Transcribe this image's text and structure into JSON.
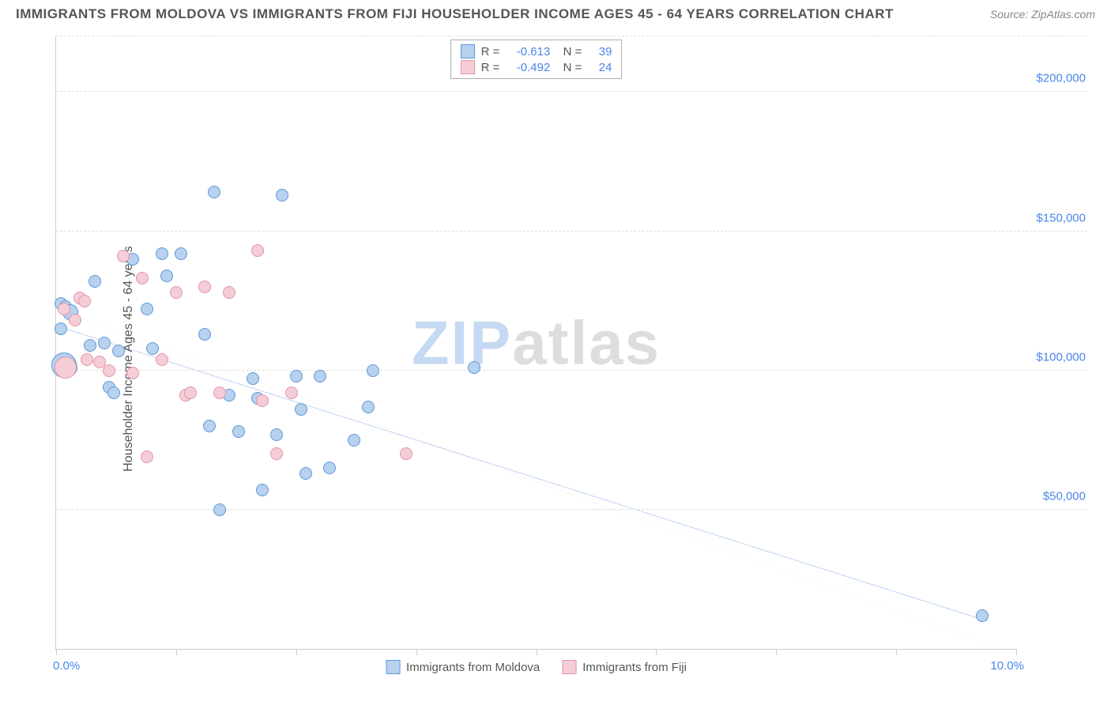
{
  "title": "IMMIGRANTS FROM MOLDOVA VS IMMIGRANTS FROM FIJI HOUSEHOLDER INCOME AGES 45 - 64 YEARS CORRELATION CHART",
  "source": "Source: ZipAtlas.com",
  "ylabel": "Householder Income Ages 45 - 64 years",
  "chart": {
    "type": "scatter",
    "xlim": [
      0,
      10
    ],
    "ylim": [
      0,
      220000
    ],
    "xlim_labels": [
      "0.0%",
      "10.0%"
    ],
    "ytick_step": 50000,
    "ytick_labels": [
      "$50,000",
      "$100,000",
      "$150,000",
      "$200,000"
    ],
    "xtick_positions_pct": [
      0,
      12.5,
      25,
      37.5,
      50,
      62.5,
      75,
      87.5,
      100
    ],
    "grid_color": "#dddddd",
    "axis_color": "#cccccc",
    "background_color": "#ffffff",
    "series": [
      {
        "name": "Immigrants from Moldova",
        "fill": "#b7d1ef",
        "stroke": "#5f98d8",
        "trend_stroke": "#2a6fdb",
        "trend_width": 2.5,
        "trend_dash": "none",
        "stats": {
          "R": "-0.613",
          "N": "39"
        },
        "trend": {
          "x1": 0,
          "y1": 116000,
          "x2": 9.7,
          "y2": 10000
        },
        "points": [
          {
            "x": 0.05,
            "y": 124000,
            "r": 8
          },
          {
            "x": 0.1,
            "y": 123000,
            "r": 8
          },
          {
            "x": 0.15,
            "y": 121000,
            "r": 10
          },
          {
            "x": 0.05,
            "y": 115000,
            "r": 8
          },
          {
            "x": 0.08,
            "y": 102000,
            "r": 16
          },
          {
            "x": 0.12,
            "y": 101000,
            "r": 12
          },
          {
            "x": 0.35,
            "y": 109000,
            "r": 8
          },
          {
            "x": 0.4,
            "y": 132000,
            "r": 8
          },
          {
            "x": 0.5,
            "y": 110000,
            "r": 8
          },
          {
            "x": 0.55,
            "y": 94000,
            "r": 8
          },
          {
            "x": 0.6,
            "y": 92000,
            "r": 8
          },
          {
            "x": 0.65,
            "y": 107000,
            "r": 8
          },
          {
            "x": 0.8,
            "y": 140000,
            "r": 8
          },
          {
            "x": 0.95,
            "y": 122000,
            "r": 8
          },
          {
            "x": 1.0,
            "y": 108000,
            "r": 8
          },
          {
            "x": 1.1,
            "y": 142000,
            "r": 8
          },
          {
            "x": 1.15,
            "y": 134000,
            "r": 8
          },
          {
            "x": 1.3,
            "y": 142000,
            "r": 8
          },
          {
            "x": 1.55,
            "y": 113000,
            "r": 8
          },
          {
            "x": 1.6,
            "y": 80000,
            "r": 8
          },
          {
            "x": 1.65,
            "y": 164000,
            "r": 8
          },
          {
            "x": 1.7,
            "y": 50000,
            "r": 8
          },
          {
            "x": 1.8,
            "y": 91000,
            "r": 8
          },
          {
            "x": 1.9,
            "y": 78000,
            "r": 8
          },
          {
            "x": 2.05,
            "y": 97000,
            "r": 8
          },
          {
            "x": 2.1,
            "y": 90000,
            "r": 8
          },
          {
            "x": 2.15,
            "y": 57000,
            "r": 8
          },
          {
            "x": 2.3,
            "y": 77000,
            "r": 8
          },
          {
            "x": 2.35,
            "y": 163000,
            "r": 8
          },
          {
            "x": 2.5,
            "y": 98000,
            "r": 8
          },
          {
            "x": 2.55,
            "y": 86000,
            "r": 8
          },
          {
            "x": 2.6,
            "y": 63000,
            "r": 8
          },
          {
            "x": 2.75,
            "y": 98000,
            "r": 8
          },
          {
            "x": 2.85,
            "y": 65000,
            "r": 8
          },
          {
            "x": 3.1,
            "y": 75000,
            "r": 8
          },
          {
            "x": 3.25,
            "y": 87000,
            "r": 8
          },
          {
            "x": 3.3,
            "y": 100000,
            "r": 8
          },
          {
            "x": 4.35,
            "y": 101000,
            "r": 8
          },
          {
            "x": 9.65,
            "y": 12000,
            "r": 8
          }
        ]
      },
      {
        "name": "Immigrants from Fiji",
        "fill": "#f5cdd6",
        "stroke": "#e295a8",
        "trend_stroke": "#e8a0b2",
        "trend_width": 1.4,
        "trend_dash": "6,5",
        "stats": {
          "R": "-0.492",
          "N": "24"
        },
        "trend": {
          "x1": 0,
          "y1": 122000,
          "x2": 10.0,
          "y2": -2000
        },
        "points": [
          {
            "x": 0.08,
            "y": 122000,
            "r": 8
          },
          {
            "x": 0.1,
            "y": 101000,
            "r": 14
          },
          {
            "x": 0.2,
            "y": 118000,
            "r": 8
          },
          {
            "x": 0.25,
            "y": 126000,
            "r": 8
          },
          {
            "x": 0.3,
            "y": 125000,
            "r": 8
          },
          {
            "x": 0.32,
            "y": 104000,
            "r": 8
          },
          {
            "x": 0.45,
            "y": 103000,
            "r": 8
          },
          {
            "x": 0.55,
            "y": 100000,
            "r": 8
          },
          {
            "x": 0.7,
            "y": 141000,
            "r": 8
          },
          {
            "x": 0.8,
            "y": 99000,
            "r": 8
          },
          {
            "x": 0.9,
            "y": 133000,
            "r": 8
          },
          {
            "x": 0.95,
            "y": 69000,
            "r": 8
          },
          {
            "x": 1.1,
            "y": 104000,
            "r": 8
          },
          {
            "x": 1.25,
            "y": 128000,
            "r": 8
          },
          {
            "x": 1.35,
            "y": 91000,
            "r": 8
          },
          {
            "x": 1.4,
            "y": 92000,
            "r": 8
          },
          {
            "x": 1.55,
            "y": 130000,
            "r": 8
          },
          {
            "x": 1.7,
            "y": 92000,
            "r": 8
          },
          {
            "x": 1.8,
            "y": 128000,
            "r": 8
          },
          {
            "x": 2.1,
            "y": 143000,
            "r": 8
          },
          {
            "x": 2.15,
            "y": 89000,
            "r": 8
          },
          {
            "x": 2.3,
            "y": 70000,
            "r": 8
          },
          {
            "x": 2.45,
            "y": 92000,
            "r": 8
          },
          {
            "x": 3.65,
            "y": 70000,
            "r": 8
          }
        ]
      }
    ]
  },
  "watermark": {
    "text1": "ZIP",
    "text2": "atlas",
    "color1": "#c6d9f2",
    "color2": "#dddddd"
  },
  "legend_stats_labels": {
    "R": "R =",
    "N": "N ="
  }
}
